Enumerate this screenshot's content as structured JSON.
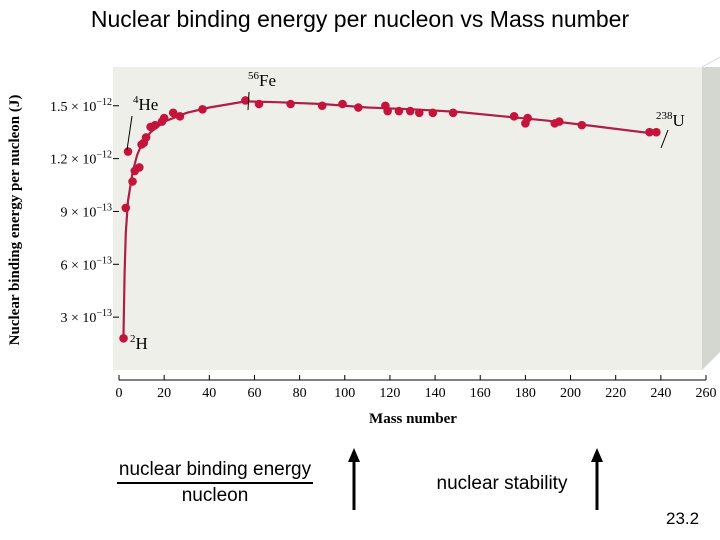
{
  "slide": {
    "title": "Nuclear binding energy per nucleon vs Mass number",
    "number": "23.2"
  },
  "bottom": {
    "fraction_numerator": "nuclear binding energy",
    "fraction_denominator": "nucleon",
    "stability_label": "nuclear stability",
    "arrow_direction": "up"
  },
  "colors": {
    "curve": "#b01e46",
    "point": "#c4143c",
    "panel": "#eeefe9",
    "panel_shadow": "#d4d6d0"
  },
  "chart_data": {
    "type": "scatter",
    "title": "",
    "xlabel": "Mass number",
    "ylabel": "Nuclear binding energy per nucleon (J)",
    "xlim": [
      0,
      260
    ],
    "ylim": [
      0,
      1.72e-12
    ],
    "x_ticks": [
      0,
      20,
      40,
      60,
      80,
      100,
      120,
      140,
      160,
      180,
      200,
      220,
      240,
      260
    ],
    "y_tick_values": [
      3e-13,
      6e-13,
      9e-13,
      1.2e-12,
      1.5e-12
    ],
    "y_tick_labels": [
      {
        "mantissa": "3 × 10",
        "exp": "−13"
      },
      {
        "mantissa": "6 × 10",
        "exp": "−13"
      },
      {
        "mantissa": "9 × 10",
        "exp": "−13"
      },
      {
        "mantissa": "1.2 × 10",
        "exp": "−12"
      },
      {
        "mantissa": "1.5 × 10",
        "exp": "−12"
      }
    ],
    "points": [
      [
        2,
        1.8e-13
      ],
      [
        3,
        9.2e-13
      ],
      [
        4,
        1.24e-12
      ],
      [
        6,
        1.07e-12
      ],
      [
        7,
        1.13e-12
      ],
      [
        9,
        1.15e-12
      ],
      [
        10,
        1.28e-12
      ],
      [
        11,
        1.29e-12
      ],
      [
        12,
        1.32e-12
      ],
      [
        14,
        1.38e-12
      ],
      [
        16,
        1.39e-12
      ],
      [
        19,
        1.41e-12
      ],
      [
        20,
        1.43e-12
      ],
      [
        24,
        1.46e-12
      ],
      [
        27,
        1.44e-12
      ],
      [
        37,
        1.48e-12
      ],
      [
        56,
        1.53e-12
      ],
      [
        62,
        1.51e-12
      ],
      [
        76,
        1.51e-12
      ],
      [
        90,
        1.5e-12
      ],
      [
        99,
        1.51e-12
      ],
      [
        106,
        1.49e-12
      ],
      [
        118,
        1.5e-12
      ],
      [
        119,
        1.47e-12
      ],
      [
        124,
        1.47e-12
      ],
      [
        129,
        1.47e-12
      ],
      [
        133,
        1.46e-12
      ],
      [
        139,
        1.46e-12
      ],
      [
        148,
        1.46e-12
      ],
      [
        175,
        1.44e-12
      ],
      [
        180,
        1.4e-12
      ],
      [
        181,
        1.43e-12
      ],
      [
        193,
        1.4e-12
      ],
      [
        195,
        1.41e-12
      ],
      [
        205,
        1.39e-12
      ],
      [
        235,
        1.35e-12
      ],
      [
        238,
        1.35e-12
      ]
    ],
    "curve": [
      [
        2,
        2e-13
      ],
      [
        2.5,
        5.5e-13
      ],
      [
        3,
        7.8e-13
      ],
      [
        4,
        9.6e-13
      ],
      [
        6,
        1.12e-12
      ],
      [
        8,
        1.22e-12
      ],
      [
        10,
        1.28e-12
      ],
      [
        14,
        1.35e-12
      ],
      [
        20,
        1.41e-12
      ],
      [
        30,
        1.46e-12
      ],
      [
        40,
        1.49e-12
      ],
      [
        56,
        1.525e-12
      ],
      [
        70,
        1.52e-12
      ],
      [
        90,
        1.51e-12
      ],
      [
        110,
        1.49e-12
      ],
      [
        130,
        1.48e-12
      ],
      [
        150,
        1.465e-12
      ],
      [
        170,
        1.44e-12
      ],
      [
        190,
        1.415e-12
      ],
      [
        210,
        1.385e-12
      ],
      [
        238,
        1.34e-12
      ]
    ],
    "annotations": [
      {
        "id": "he4",
        "mass": "4",
        "symbol": "He",
        "at": [
          4,
          1.24e-12
        ]
      },
      {
        "id": "fe56",
        "mass": "56",
        "symbol": "Fe",
        "at": [
          56,
          1.53e-12
        ]
      },
      {
        "id": "u238",
        "mass": "238",
        "symbol": "U",
        "at": [
          238,
          1.35e-12
        ]
      },
      {
        "id": "h2",
        "mass": "2",
        "symbol": "H",
        "at": [
          2,
          1.8e-13
        ]
      }
    ]
  }
}
